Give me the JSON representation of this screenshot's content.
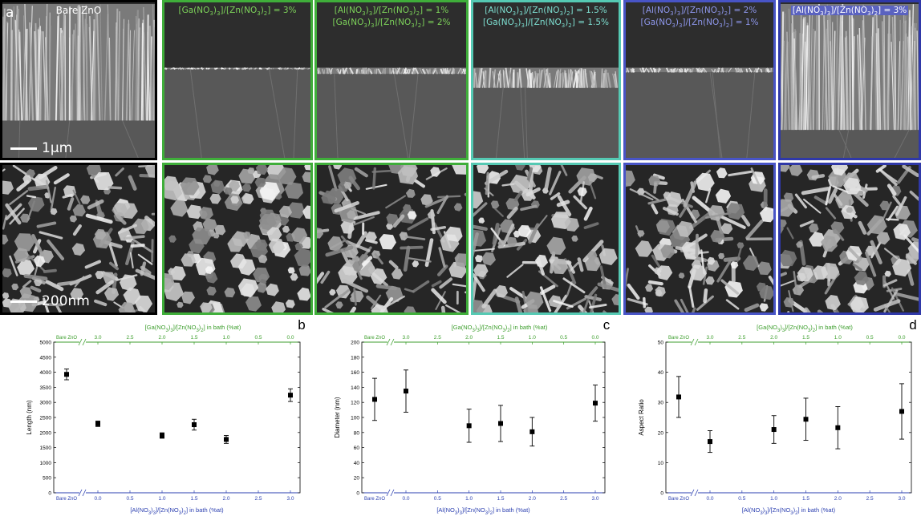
{
  "panels": {
    "a": {
      "letter": "a",
      "scale_top": "1µm",
      "scale_bottom": "200nm",
      "conditions": [
        {
          "lines": [
            [
              "Bare ZnO"
            ]
          ]
        },
        {
          "lines": [
            [
              "[Ga(NO",
              "3",
              ")",
              "3",
              "]/[Zn(NO",
              "3",
              ")",
              "2",
              "] = 3%"
            ]
          ]
        },
        {
          "lines": [
            [
              "[Al(NO",
              "3",
              ")",
              "3",
              "]/[Zn(NO",
              "3",
              ")",
              "2",
              "] = 1%"
            ],
            [
              "[Ga(NO",
              "3",
              ")",
              "3",
              "]/[Zn(NO",
              "3",
              ")",
              "2",
              "] = 2%"
            ]
          ]
        },
        {
          "lines": [
            [
              "[Al(NO",
              "3",
              ")",
              "3",
              "]/[Zn(NO",
              "3",
              ")",
              "2",
              "] = 1.5%"
            ],
            [
              "[Ga(NO",
              "3",
              ")",
              "3",
              "]/[Zn(NO",
              "3",
              ")",
              "2",
              "] = 1.5%"
            ]
          ]
        },
        {
          "lines": [
            [
              "[Al(NO",
              "3",
              ")",
              "3",
              "]/[Zn(NO",
              "3",
              ")",
              "2",
              "] = 2%"
            ],
            [
              "[Ga(NO",
              "3",
              ")",
              "3",
              "]/[Zn(NO",
              "3",
              ")",
              "2",
              "] = 1%"
            ]
          ]
        },
        {
          "lines": [
            [
              "[Al(NO",
              "3",
              ")",
              "3",
              "]/[Zn(NO",
              "3",
              ")",
              "2",
              "] = 3%"
            ]
          ]
        }
      ]
    }
  },
  "colors": {
    "ga_axis": "#3c9e2c",
    "al_axis": "#2b3fb0",
    "frame_black": "#000000",
    "frame_green": "#3fae3a",
    "frame_teal": "#55c9b3",
    "frame_blue": "#4854c6",
    "frame_darkblue": "#2f38a8"
  },
  "chart_data": [
    {
      "panel_letter": "b",
      "type": "scatter",
      "ylabel": "Length (nm)",
      "xlabel": [
        "[Al(NO",
        "3",
        ")",
        "3",
        "]/[Zn(NO",
        "3",
        ")",
        "2",
        "] in bath (%at)"
      ],
      "x2label": [
        "[Ga(NO",
        "3",
        ")",
        "3",
        "]/[Zn(NO",
        "3",
        ")",
        "2",
        "] in bath (%at)"
      ],
      "ylim": [
        0,
        5000
      ],
      "yticks": [
        0,
        500,
        1000,
        1500,
        2000,
        2500,
        3000,
        3500,
        4000,
        4500,
        5000
      ],
      "bare_label": "Bare ZnO",
      "xticks": [
        "0.0",
        "0.5",
        "1.0",
        "1.5",
        "2.0",
        "2.5",
        "3.0"
      ],
      "x2ticks": [
        "3.0",
        "2.5",
        "2.0",
        "1.5",
        "1.0",
        "0.5",
        "0.0"
      ],
      "points": [
        {
          "x": "Bare ZnO",
          "y": 3930,
          "err": 180
        },
        {
          "x": 0.0,
          "y": 2290,
          "err": 90
        },
        {
          "x": 1.0,
          "y": 1900,
          "err": 90
        },
        {
          "x": 1.5,
          "y": 2260,
          "err": 180
        },
        {
          "x": 2.0,
          "y": 1770,
          "err": 130
        },
        {
          "x": 3.0,
          "y": 3240,
          "err": 210
        }
      ]
    },
    {
      "panel_letter": "c",
      "type": "scatter",
      "ylabel": "Diameter (nm)",
      "xlabel": [
        "[Al(NO",
        "3",
        ")",
        "3",
        "]/[Zn(NO",
        "3",
        ")",
        "2",
        "] in bath (%at)"
      ],
      "x2label": [
        "[Ga(NO",
        "3",
        ")",
        "3",
        "]/[Zn(NO",
        "3",
        ")",
        "2",
        "] in bath (%at)"
      ],
      "ylim": [
        0,
        200
      ],
      "yticks": [
        0,
        20,
        40,
        60,
        80,
        100,
        120,
        140,
        160,
        180,
        200
      ],
      "bare_label": "Bare ZnO",
      "xticks": [
        "0.0",
        "0.5",
        "1.0",
        "1.5",
        "2.0",
        "2.5",
        "3.0"
      ],
      "x2ticks": [
        "3.0",
        "2.5",
        "2.0",
        "1.5",
        "1.0",
        "0.5",
        "0.0"
      ],
      "points": [
        {
          "x": "Bare ZnO",
          "y": 124,
          "err": 28
        },
        {
          "x": 0.0,
          "y": 135,
          "err": 28
        },
        {
          "x": 1.0,
          "y": 89,
          "err": 22
        },
        {
          "x": 1.5,
          "y": 92,
          "err": 24
        },
        {
          "x": 2.0,
          "y": 81,
          "err": 19
        },
        {
          "x": 3.0,
          "y": 119,
          "err": 24
        }
      ]
    },
    {
      "panel_letter": "d",
      "type": "scatter",
      "ylabel": "Aspect Ratio",
      "xlabel": [
        "[Al(NO",
        "3",
        ")",
        "3",
        "]/[Zn(NO",
        "3",
        ")",
        "2",
        "] in bath (%at)"
      ],
      "x2label": [
        "[Ga(NO",
        "3",
        ")",
        "3",
        "]/[Zn(NO",
        "3",
        ")",
        "2",
        "] in bath (%at)"
      ],
      "ylim": [
        0,
        50
      ],
      "yticks": [
        0,
        10,
        20,
        30,
        40,
        50
      ],
      "bare_label": "Bare ZnO",
      "xticks": [
        "0.0",
        "0.5",
        "1.0",
        "1.5",
        "2.0",
        "2.5",
        "3.0"
      ],
      "x2ticks": [
        "3.0",
        "2.5",
        "2.0",
        "1.5",
        "1.0",
        "0.5",
        "0.0"
      ],
      "points": [
        {
          "x": "Bare ZnO",
          "y": 31.8,
          "err": 6.8
        },
        {
          "x": 0.0,
          "y": 17.0,
          "err": 3.6
        },
        {
          "x": 1.0,
          "y": 21.0,
          "err": 4.6
        },
        {
          "x": 1.5,
          "y": 24.4,
          "err": 7.0
        },
        {
          "x": 2.0,
          "y": 21.6,
          "err": 7.0
        },
        {
          "x": 3.0,
          "y": 27.0,
          "err": 9.2
        }
      ]
    }
  ]
}
